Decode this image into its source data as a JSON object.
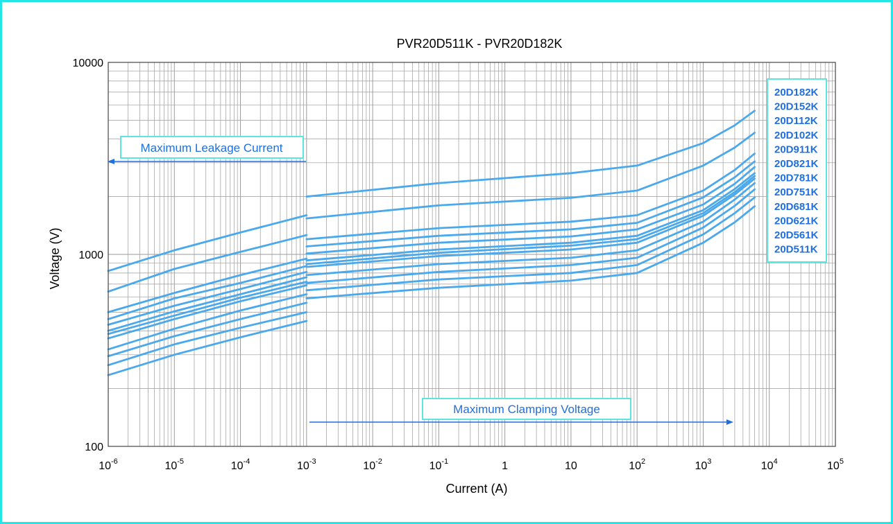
{
  "colors": {
    "frame": "#23e6e6",
    "series": "#4aa8ec",
    "text_blue": "#1f6fe0",
    "arrow": "#1f6fe0",
    "grid": "#9a9a9a",
    "box_border": "#5ee6dc"
  },
  "chart_data": {
    "type": "line",
    "title": "PVR20D511K - PVR20D182K",
    "xlabel": "Current (A)",
    "ylabel": "Voltage (V)",
    "xscale": "log",
    "yscale": "log",
    "xlim": [
      1e-06,
      100000.0
    ],
    "ylim": [
      100,
      10000
    ],
    "grid": true,
    "x_ticks": [
      {
        "base": "10",
        "exp": "-6"
      },
      {
        "base": "10",
        "exp": "-5"
      },
      {
        "base": "10",
        "exp": "-4"
      },
      {
        "base": "10",
        "exp": "-3"
      },
      {
        "base": "10",
        "exp": "-2"
      },
      {
        "base": "10",
        "exp": "-1"
      },
      {
        "base": "1",
        "exp": ""
      },
      {
        "base": "10",
        "exp": ""
      },
      {
        "base": "10",
        "exp": "2"
      },
      {
        "base": "10",
        "exp": "3"
      },
      {
        "base": "10",
        "exp": "4"
      },
      {
        "base": "10",
        "exp": "5"
      }
    ],
    "y_ticks": [
      "100",
      "1000",
      "10000"
    ],
    "legend": {
      "position": "right",
      "entries": [
        "20D182K",
        "20D152K",
        "20D112K",
        "20D102K",
        "20D911K",
        "20D821K",
        "20D781K",
        "20D751K",
        "20D681K",
        "20D621K",
        "20D561K",
        "20D511K"
      ]
    },
    "annotations": [
      {
        "text": "Maximum Leakage Current",
        "direction": "left"
      },
      {
        "text": "Maximum Clamping Voltage",
        "direction": "right"
      }
    ],
    "leakage_x": [
      1e-06,
      1e-05,
      0.0001,
      0.001
    ],
    "clamping_x": [
      0.001,
      0.1,
      10,
      100,
      1000,
      3000,
      6000
    ],
    "series": [
      {
        "name": "20D182K",
        "leakage": [
          820,
          1050,
          1300,
          1600
        ],
        "clamping": [
          2000,
          2350,
          2650,
          2900,
          3800,
          4700,
          5600
        ]
      },
      {
        "name": "20D152K",
        "leakage": [
          640,
          840,
          1030,
          1260
        ],
        "clamping": [
          1540,
          1800,
          1970,
          2150,
          2900,
          3600,
          4300
        ]
      },
      {
        "name": "20D112K",
        "leakage": [
          500,
          630,
          780,
          950
        ],
        "clamping": [
          1200,
          1370,
          1480,
          1600,
          2150,
          2750,
          3350
        ]
      },
      {
        "name": "20D102K",
        "leakage": [
          460,
          590,
          710,
          870
        ],
        "clamping": [
          1100,
          1250,
          1350,
          1460,
          1980,
          2520,
          3050
        ]
      },
      {
        "name": "20D911K",
        "leakage": [
          430,
          540,
          660,
          810
        ],
        "clamping": [
          1010,
          1150,
          1240,
          1350,
          1820,
          2330,
          2850
        ]
      },
      {
        "name": "20D821K",
        "leakage": [
          400,
          505,
          620,
          760
        ],
        "clamping": [
          930,
          1060,
          1150,
          1250,
          1700,
          2190,
          2650
        ]
      },
      {
        "name": "20D781K",
        "leakage": [
          385,
          480,
          595,
          720
        ],
        "clamping": [
          890,
          1020,
          1110,
          1200,
          1640,
          2110,
          2560
        ]
      },
      {
        "name": "20D751K",
        "leakage": [
          365,
          460,
          570,
          690
        ],
        "clamping": [
          860,
          980,
          1060,
          1150,
          1590,
          2050,
          2480
        ]
      },
      {
        "name": "20D681K",
        "leakage": [
          320,
          410,
          510,
          620
        ],
        "clamping": [
          780,
          890,
          960,
          1050,
          1480,
          1930,
          2350
        ]
      },
      {
        "name": "20D621K",
        "leakage": [
          295,
          375,
          460,
          560
        ],
        "clamping": [
          710,
          810,
          880,
          960,
          1380,
          1790,
          2180
        ]
      },
      {
        "name": "20D561K",
        "leakage": [
          265,
          340,
          415,
          500
        ],
        "clamping": [
          650,
          740,
          800,
          880,
          1270,
          1640,
          1980
        ]
      },
      {
        "name": "20D511K",
        "leakage": [
          235,
          300,
          370,
          450
        ],
        "clamping": [
          590,
          670,
          730,
          800,
          1150,
          1470,
          1780
        ]
      }
    ]
  }
}
